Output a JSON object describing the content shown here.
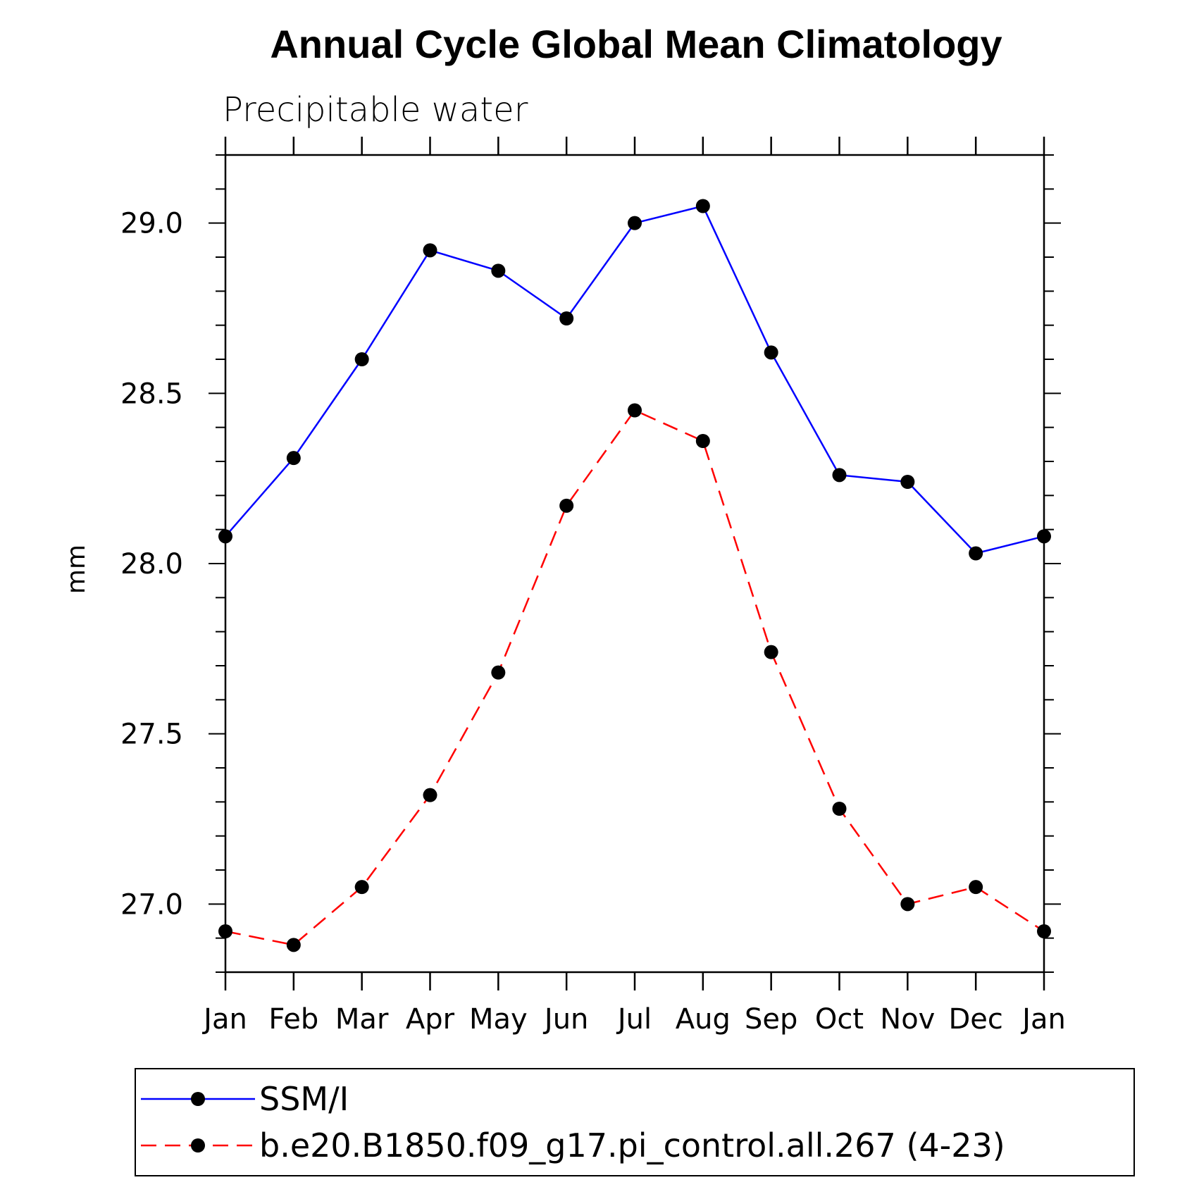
{
  "chart_data": {
    "type": "line",
    "title": "Annual Cycle Global Mean Climatology",
    "subtitle": "Precipitable water",
    "ylabel": "mm",
    "xlabel": "",
    "categories": [
      "Jan",
      "Feb",
      "Mar",
      "Apr",
      "May",
      "Jun",
      "Jul",
      "Aug",
      "Sep",
      "Oct",
      "Nov",
      "Dec",
      "Jan"
    ],
    "ylim": [
      26.8,
      29.2
    ],
    "yticks": [
      "27.0",
      "27.5",
      "28.0",
      "28.5",
      "29.0"
    ],
    "grid": false,
    "legend_position": "bottom",
    "series": [
      {
        "name": "SSM/I",
        "color": "#0000ff",
        "dash": "solid",
        "marker": "filled-circle",
        "values": [
          28.08,
          28.31,
          28.6,
          28.92,
          28.86,
          28.72,
          29.0,
          29.05,
          28.62,
          28.26,
          28.24,
          28.03,
          28.08
        ]
      },
      {
        "name": "b.e20.B1850.f09_g17.pi_control.all.267 (4-23)",
        "color": "#ff0000",
        "dash": "dashed",
        "marker": "filled-circle",
        "values": [
          26.92,
          26.88,
          27.05,
          27.32,
          27.68,
          28.17,
          28.45,
          28.36,
          27.74,
          27.28,
          27.0,
          27.05,
          26.92
        ]
      }
    ]
  }
}
